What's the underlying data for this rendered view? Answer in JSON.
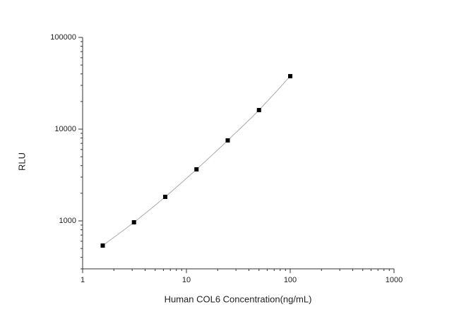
{
  "chart_data": {
    "type": "scatter",
    "x_label": "Human COL6 Concentration(ng/mL)",
    "y_label": "RLU",
    "x": [
      1.5625,
      3.125,
      6.25,
      12.5,
      25,
      50,
      100
    ],
    "values": [
      538,
      965,
      1828,
      3643,
      7540,
      16130,
      37800
    ],
    "color": "#000000",
    "line_color": "#aaaaaa",
    "xlim": [
      1,
      1000
    ],
    "xticks": [
      1,
      10,
      100,
      1000
    ],
    "ylim": [
      300,
      100000
    ],
    "yticks": [
      1000,
      10000,
      100000
    ],
    "xscale": "log",
    "yscale": "log",
    "fit_line": true
  }
}
